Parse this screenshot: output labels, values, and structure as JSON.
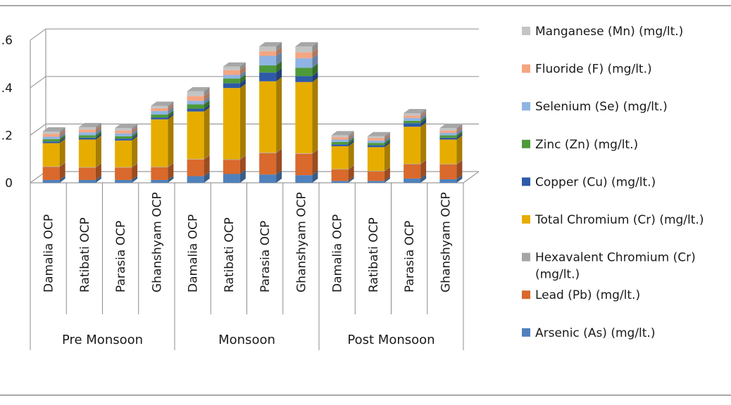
{
  "chart_data": {
    "type": "bar",
    "stacked": true,
    "style": "3d",
    "grid": true,
    "legend_position": "right",
    "ylim": [
      0,
      0.6
    ],
    "yticks": [
      {
        "value": 0,
        "label": "0"
      },
      {
        "value": 0.2,
        "label": ".2"
      },
      {
        "value": 0.4,
        "label": ".4"
      },
      {
        "value": 0.6,
        "label": ".6"
      }
    ],
    "categories": [
      "Damalia OCP",
      "Ratibati OCP",
      "Parasia OCP",
      "Ghanshyam OCP",
      "Damalia OCP",
      "Ratibati OCP",
      "Parasia OCP",
      "Ghanshyam OCP",
      "Damalia OCP",
      "Ratibati OCP",
      "Parasia OCP",
      "Ghanshyam OCP"
    ],
    "groups": [
      {
        "label": "Pre Monsoon",
        "start": 0,
        "count": 4
      },
      {
        "label": "Monsoon",
        "start": 4,
        "count": 4
      },
      {
        "label": "Post Monsoon",
        "start": 8,
        "count": 4
      }
    ],
    "series": [
      {
        "name": "Arsenic (As) (mg/lt.)",
        "color": "#4f81bd",
        "values": [
          0.012,
          0.012,
          0.012,
          0.012,
          0.028,
          0.037,
          0.035,
          0.032,
          0.008,
          0.008,
          0.018,
          0.015
        ]
      },
      {
        "name": "Lead (Pb) (mg/lt.)",
        "color": "#d9692c",
        "values": [
          0.055,
          0.052,
          0.052,
          0.053,
          0.07,
          0.06,
          0.09,
          0.09,
          0.048,
          0.04,
          0.06,
          0.062
        ]
      },
      {
        "name": "Hexavalent Chromium (Cr) (mg/lt.)",
        "color": "#a5a5a5",
        "values": [
          0.002,
          0.002,
          0.002,
          0.002,
          0.002,
          0.002,
          0.002,
          0.002,
          0.002,
          0.002,
          0.002,
          0.002
        ]
      },
      {
        "name": "Total Chromium (Cr) (mg/lt.)",
        "color": "#e6ad00",
        "values": [
          0.098,
          0.116,
          0.112,
          0.2,
          0.2,
          0.3,
          0.3,
          0.3,
          0.096,
          0.1,
          0.156,
          0.103
        ]
      },
      {
        "name": "Copper (Cu) (mg/lt.)",
        "color": "#2e5aa8",
        "values": [
          0.007,
          0.008,
          0.008,
          0.008,
          0.012,
          0.02,
          0.037,
          0.025,
          0.008,
          0.008,
          0.015,
          0.008
        ]
      },
      {
        "name": "Zinc (Zn) (mg/lt.)",
        "color": "#4e9a3a",
        "values": [
          0.01,
          0.01,
          0.01,
          0.012,
          0.018,
          0.02,
          0.03,
          0.035,
          0.01,
          0.01,
          0.01,
          0.01
        ]
      },
      {
        "name": "Selenium (Se) (mg/lt.)",
        "color": "#8fb4e3",
        "values": [
          0.01,
          0.012,
          0.012,
          0.015,
          0.015,
          0.015,
          0.04,
          0.04,
          0.01,
          0.01,
          0.012,
          0.01
        ]
      },
      {
        "name": "Fluoride (F) (mg/lt.)",
        "color": "#f4a582",
        "values": [
          0.012,
          0.012,
          0.012,
          0.012,
          0.02,
          0.02,
          0.02,
          0.025,
          0.01,
          0.01,
          0.01,
          0.01
        ]
      },
      {
        "name": "Manganese (Mn) (mg/lt.)",
        "color": "#c4c4c4",
        "values": [
          0.01,
          0.01,
          0.01,
          0.01,
          0.02,
          0.015,
          0.02,
          0.025,
          0.008,
          0.008,
          0.01,
          0.01
        ]
      }
    ]
  }
}
